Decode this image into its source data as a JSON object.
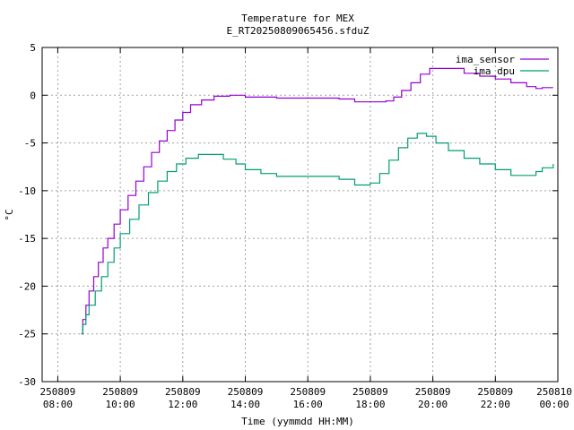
{
  "chart_data": {
    "type": "line",
    "title": "Temperature for MEX",
    "subtitle": "E_RT20250809065456.sfduZ",
    "xlabel": "Time (yymmdd HH:MM)",
    "ylabel": "°C",
    "xlim": [
      7.5,
      24.0
    ],
    "ylim": [
      -30,
      5
    ],
    "grid": true,
    "legend_position": "top-right",
    "x_ticks": [
      {
        "x": 8,
        "date": "250809",
        "time": "08:00"
      },
      {
        "x": 10,
        "date": "250809",
        "time": "10:00"
      },
      {
        "x": 12,
        "date": "250809",
        "time": "12:00"
      },
      {
        "x": 14,
        "date": "250809",
        "time": "14:00"
      },
      {
        "x": 16,
        "date": "250809",
        "time": "16:00"
      },
      {
        "x": 18,
        "date": "250809",
        "time": "18:00"
      },
      {
        "x": 20,
        "date": "250809",
        "time": "20:00"
      },
      {
        "x": 22,
        "date": "250809",
        "time": "22:00"
      },
      {
        "x": 24,
        "date": "250810",
        "time": "00:00"
      }
    ],
    "y_ticks": [
      "5",
      "0",
      "-5",
      "-10",
      "-15",
      "-20",
      "-25",
      "-30"
    ],
    "series": [
      {
        "name": "ima_sensor",
        "color": "#9400d3",
        "points": [
          [
            8.75,
            -25.0
          ],
          [
            8.8,
            -23.5
          ],
          [
            8.9,
            -22.0
          ],
          [
            9.0,
            -20.5
          ],
          [
            9.15,
            -19.0
          ],
          [
            9.3,
            -17.5
          ],
          [
            9.45,
            -16.0
          ],
          [
            9.6,
            -15.0
          ],
          [
            9.8,
            -13.5
          ],
          [
            10.0,
            -12.0
          ],
          [
            10.25,
            -10.5
          ],
          [
            10.5,
            -9.0
          ],
          [
            10.75,
            -7.5
          ],
          [
            11.0,
            -6.0
          ],
          [
            11.25,
            -4.8
          ],
          [
            11.5,
            -3.7
          ],
          [
            11.75,
            -2.6
          ],
          [
            12.0,
            -1.8
          ],
          [
            12.25,
            -1.0
          ],
          [
            12.6,
            -0.5
          ],
          [
            13.0,
            -0.1
          ],
          [
            13.5,
            0.0
          ],
          [
            14.0,
            -0.2
          ],
          [
            15.0,
            -0.3
          ],
          [
            16.0,
            -0.3
          ],
          [
            17.0,
            -0.4
          ],
          [
            17.5,
            -0.7
          ],
          [
            18.0,
            -0.7
          ],
          [
            18.5,
            -0.6
          ],
          [
            18.75,
            -0.2
          ],
          [
            19.0,
            0.5
          ],
          [
            19.3,
            1.3
          ],
          [
            19.6,
            2.2
          ],
          [
            19.9,
            2.8
          ],
          [
            20.5,
            2.8
          ],
          [
            21.0,
            2.3
          ],
          [
            21.5,
            2.0
          ],
          [
            22.0,
            1.7
          ],
          [
            22.5,
            1.3
          ],
          [
            23.0,
            0.9
          ],
          [
            23.3,
            0.7
          ],
          [
            23.5,
            0.8
          ],
          [
            23.85,
            0.8
          ]
        ]
      },
      {
        "name": "ima_dpu",
        "color": "#009e73",
        "points": [
          [
            8.75,
            -25.0
          ],
          [
            8.8,
            -24.0
          ],
          [
            8.9,
            -23.0
          ],
          [
            9.0,
            -22.0
          ],
          [
            9.2,
            -20.5
          ],
          [
            9.4,
            -19.0
          ],
          [
            9.6,
            -17.5
          ],
          [
            9.8,
            -16.0
          ],
          [
            10.0,
            -14.5
          ],
          [
            10.3,
            -13.0
          ],
          [
            10.6,
            -11.5
          ],
          [
            10.9,
            -10.2
          ],
          [
            11.2,
            -9.0
          ],
          [
            11.5,
            -8.0
          ],
          [
            11.8,
            -7.2
          ],
          [
            12.1,
            -6.6
          ],
          [
            12.5,
            -6.2
          ],
          [
            13.0,
            -6.2
          ],
          [
            13.3,
            -6.7
          ],
          [
            13.7,
            -7.2
          ],
          [
            14.0,
            -7.8
          ],
          [
            14.5,
            -8.2
          ],
          [
            15.0,
            -8.5
          ],
          [
            15.5,
            -8.5
          ],
          [
            16.0,
            -8.5
          ],
          [
            16.5,
            -8.5
          ],
          [
            17.0,
            -8.8
          ],
          [
            17.5,
            -9.4
          ],
          [
            18.0,
            -9.2
          ],
          [
            18.3,
            -8.2
          ],
          [
            18.6,
            -6.8
          ],
          [
            18.9,
            -5.5
          ],
          [
            19.2,
            -4.5
          ],
          [
            19.5,
            -4.0
          ],
          [
            19.8,
            -4.3
          ],
          [
            20.1,
            -5.0
          ],
          [
            20.5,
            -5.8
          ],
          [
            21.0,
            -6.6
          ],
          [
            21.5,
            -7.2
          ],
          [
            22.0,
            -7.8
          ],
          [
            22.5,
            -8.4
          ],
          [
            23.0,
            -8.4
          ],
          [
            23.3,
            -8.0
          ],
          [
            23.5,
            -7.6
          ],
          [
            23.85,
            -7.2
          ]
        ]
      }
    ]
  }
}
